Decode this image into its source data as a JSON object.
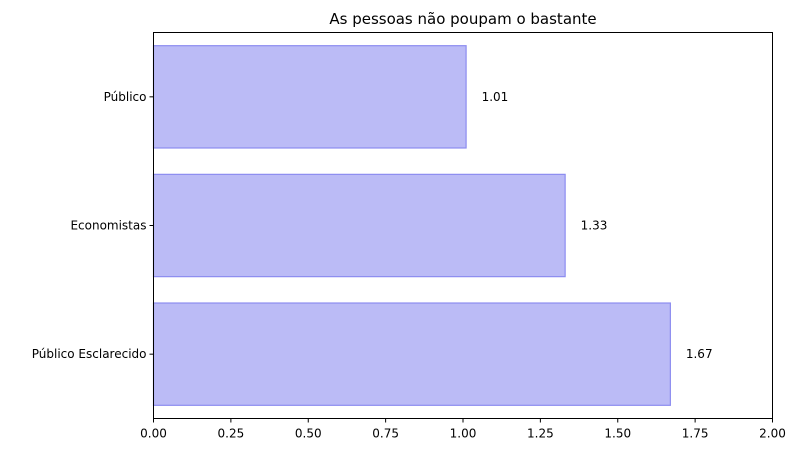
{
  "chart_data": {
    "type": "bar",
    "orientation": "horizontal",
    "title": "As pessoas não poupam o bastante",
    "xlabel": "",
    "ylabel": "",
    "categories": [
      "Público",
      "Economistas",
      "Público Esclarecido"
    ],
    "values": [
      1.01,
      1.33,
      1.67
    ],
    "data_labels": [
      "1.01",
      "1.33",
      "1.67"
    ],
    "xlim": [
      0,
      2.0
    ],
    "xticks": [
      0.0,
      0.25,
      0.5,
      0.75,
      1.0,
      1.25,
      1.5,
      1.75,
      2.0
    ],
    "xtick_labels": [
      "0.00",
      "0.25",
      "0.50",
      "0.75",
      "1.00",
      "1.25",
      "1.50",
      "1.75",
      "2.00"
    ],
    "grid": false,
    "colors": {
      "bar_fill": "#bbbbf6",
      "bar_edge": "#8c8cf0"
    }
  }
}
